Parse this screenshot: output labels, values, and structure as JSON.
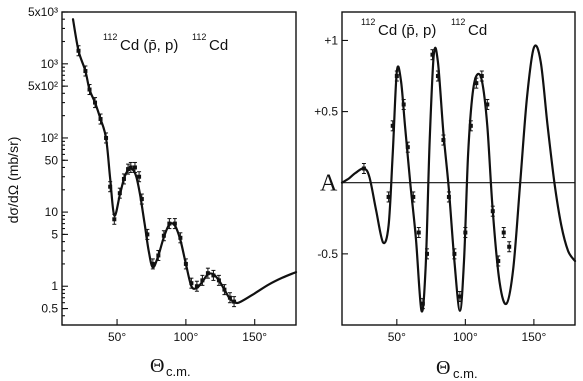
{
  "chart_data": [
    {
      "type": "scatter",
      "panel": "left",
      "title": {
        "pre_sup": "112",
        "text": "Cd (p̄, p)",
        "post_sup": "112",
        "post": "Cd"
      },
      "ylabel": "dσ/dΩ  (mb/sr)",
      "xlabel": {
        "main": "Θ",
        "sub": "c.m."
      },
      "xlim": [
        10,
        180
      ],
      "ylim": [
        0.3,
        5000
      ],
      "yscale": "log",
      "xticks": [
        50,
        100,
        150
      ],
      "xtick_labels": [
        "50°",
        "100°",
        "150°"
      ],
      "yticks": [
        5000,
        1000,
        500,
        100,
        50,
        10,
        5,
        1,
        0.5
      ],
      "ytick_labels": [
        "5x10³",
        "10³",
        "5x10²",
        "10²",
        "50",
        "10",
        "5",
        "1",
        "0.5"
      ],
      "series": [
        {
          "kind": "data",
          "x": [
            22,
            27,
            30,
            34,
            38,
            42,
            45,
            48,
            52,
            55,
            58,
            60,
            63,
            66,
            68,
            72,
            76,
            80,
            84,
            88,
            92,
            96,
            100,
            104,
            108,
            112,
            116,
            120,
            124,
            128,
            132,
            135
          ],
          "y": [
            1500,
            800,
            450,
            300,
            180,
            100,
            22,
            8,
            18,
            28,
            38,
            40,
            40,
            30,
            15,
            5,
            2,
            2.6,
            4.8,
            7,
            7,
            4.5,
            2,
            1.1,
            1,
            1.2,
            1.5,
            1.4,
            1.2,
            0.9,
            0.7,
            0.62
          ]
        },
        {
          "kind": "fit",
          "x": [
            18,
            22,
            27,
            30,
            34,
            38,
            42,
            45,
            48,
            52,
            55,
            58,
            61,
            64,
            67,
            70,
            73,
            76,
            80,
            84,
            88,
            92,
            96,
            100,
            104,
            108,
            112,
            116,
            120,
            124,
            128,
            132,
            136,
            140,
            150,
            160,
            170,
            180
          ],
          "y": [
            4000,
            1500,
            800,
            450,
            300,
            180,
            100,
            28,
            9,
            17,
            28,
            37,
            38,
            30,
            16,
            7,
            3,
            1.8,
            2.6,
            4.6,
            6.8,
            6.6,
            4.2,
            2,
            1,
            0.95,
            1.15,
            1.45,
            1.45,
            1.2,
            0.9,
            0.68,
            0.6,
            0.62,
            0.8,
            1.05,
            1.3,
            1.55
          ]
        }
      ]
    },
    {
      "type": "scatter",
      "panel": "right",
      "title": {
        "pre_sup": "112",
        "text": "Cd (p̄, p)",
        "post_sup": "112",
        "post": "Cd"
      },
      "ylabel": "A",
      "xlabel": {
        "main": "Θ",
        "sub": "c.m."
      },
      "xlim": [
        10,
        180
      ],
      "ylim": [
        -1.0,
        1.2
      ],
      "yscale": "linear",
      "xticks": [
        50,
        100,
        150
      ],
      "xtick_labels": [
        "50°",
        "100°",
        "150°"
      ],
      "yticks": [
        1,
        0.5,
        -0.5
      ],
      "ytick_labels": [
        "+1",
        "+0.5",
        "-0.5"
      ],
      "series": [
        {
          "kind": "data",
          "x": [
            26,
            44,
            47,
            50,
            55,
            58,
            62,
            66,
            69,
            72,
            76,
            80,
            84,
            88,
            92,
            96,
            100,
            104,
            108,
            112,
            116,
            120,
            124,
            128,
            132
          ],
          "y": [
            0.1,
            -0.1,
            0.4,
            0.75,
            0.55,
            0.25,
            -0.1,
            -0.35,
            -0.85,
            -0.5,
            0.9,
            0.75,
            0.3,
            -0.1,
            -0.5,
            -0.8,
            -0.35,
            0.4,
            0.7,
            0.75,
            0.55,
            -0.2,
            -0.55,
            -0.35,
            -0.45
          ]
        },
        {
          "kind": "fit",
          "x": [
            10,
            15,
            20,
            26,
            30,
            35,
            40,
            44,
            47,
            50,
            53,
            56,
            60,
            64,
            68,
            71,
            74,
            77,
            80,
            84,
            88,
            92,
            96,
            99,
            102,
            105,
            108,
            112,
            116,
            120,
            125,
            130,
            135,
            140,
            145,
            150,
            155,
            160,
            165,
            170,
            175,
            180
          ],
          "y": [
            0.0,
            0.03,
            0.07,
            0.1,
            0.04,
            -0.2,
            -0.42,
            -0.3,
            0.2,
            0.78,
            0.72,
            0.4,
            -0.02,
            -0.4,
            -0.9,
            -0.6,
            0.3,
            0.9,
            0.85,
            0.35,
            -0.05,
            -0.55,
            -0.9,
            -0.55,
            0.2,
            0.6,
            0.75,
            0.72,
            0.4,
            -0.2,
            -0.7,
            -0.85,
            -0.6,
            0.0,
            0.6,
            0.95,
            0.85,
            0.4,
            0.0,
            -0.3,
            -0.48,
            -0.55
          ]
        }
      ]
    }
  ]
}
